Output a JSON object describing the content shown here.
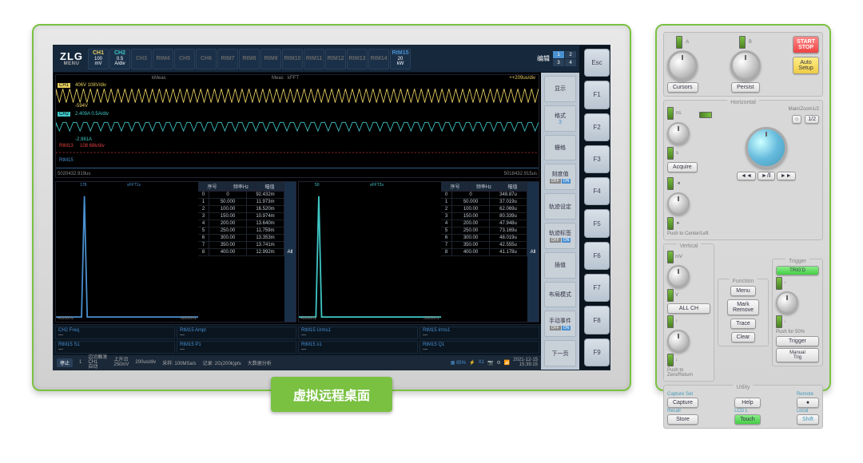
{
  "left": {
    "logo": "ZLG",
    "menu_label": "MENU",
    "channels": [
      {
        "id": "CH1",
        "l2": "100",
        "l3": "mV",
        "on": true,
        "color": "#e8d060"
      },
      {
        "id": "CH2",
        "l2": "0.5",
        "l3": "A/div",
        "on": true,
        "color": "#40c8c8"
      },
      {
        "id": "CH3",
        "on": false
      },
      {
        "id": "RtM4",
        "on": false
      },
      {
        "id": "CH5",
        "on": false
      },
      {
        "id": "CH6",
        "on": false
      },
      {
        "id": "RtM7",
        "on": false
      },
      {
        "id": "RtM8",
        "on": false
      },
      {
        "id": "RtM9",
        "on": false
      },
      {
        "id": "RtM10",
        "on": false
      },
      {
        "id": "RtM11",
        "on": false
      },
      {
        "id": "RtM12",
        "on": false
      },
      {
        "id": "RtM13",
        "on": false
      },
      {
        "id": "RtM14",
        "on": false
      },
      {
        "id": "RtM15",
        "l2": "20",
        "l3": "kW",
        "on": true,
        "color": "#4a90d0"
      }
    ],
    "edit_label": "编辑",
    "edit_cells": [
      "1",
      "2",
      "3",
      "4"
    ],
    "scope": {
      "top_labels": {
        "meas": "kMeas",
        "meas2": "Meas",
        "fft": "kFFT"
      },
      "ch1_tag": "CH1",
      "ch1_info": "406V  108V/div",
      "ch1_color": "#e8d060",
      "ch2_tag": "CH2",
      "ch2_val": "-594V",
      "ch2_info": "2.409A  0.5A/div",
      "ch2_color": "#40c8c8",
      "r13_tag": "RtM13",
      "r13_val": "-2.981A",
      "r13_info": "108  68k/div",
      "r13_color": "#e04040",
      "r15_tag": "RtM15",
      "r15_color": "#4a90d0",
      "bl": "5020432.919us",
      "br": "5018432.915us",
      "tr": "++209us/div"
    },
    "fft": {
      "left": {
        "title": "sFFT1s",
        "peak": "178",
        "x0": "40000Hz",
        "x1": "60000Hz",
        "hdr": [
          "序号",
          "频率Hz",
          "幅值"
        ],
        "rows": [
          [
            "0",
            "0",
            "92.432m"
          ],
          [
            "1",
            "50.000",
            "11.973m"
          ],
          [
            "2",
            "100.00",
            "16.520m"
          ],
          [
            "3",
            "150.00",
            "10.974m"
          ],
          [
            "4",
            "200.00",
            "13.640m"
          ],
          [
            "5",
            "250.00",
            "11.759m"
          ],
          [
            "6",
            "300.00",
            "13.353m"
          ],
          [
            "7",
            "350.00",
            "13.741m"
          ],
          [
            "8",
            "400.00",
            "12.992m"
          ]
        ],
        "all": "All",
        "color": "#4a90d0"
      },
      "right": {
        "title": "sFFT2s",
        "peak": "50",
        "x0": "40000Hz",
        "x1": "50000Hz",
        "hdr": [
          "序号",
          "频率Hz",
          "幅值"
        ],
        "rows": [
          [
            "0",
            "0",
            "348.87u"
          ],
          [
            "1",
            "50.000",
            "37.019u"
          ],
          [
            "2",
            "100.00",
            "62.069u"
          ],
          [
            "3",
            "150.00",
            "80.339u"
          ],
          [
            "4",
            "200.00",
            "47.948u"
          ],
          [
            "5",
            "250.00",
            "73.169u"
          ],
          [
            "6",
            "300.00",
            "48.019u"
          ],
          [
            "7",
            "350.00",
            "42.555u"
          ],
          [
            "8",
            "400.00",
            "41.178u"
          ]
        ],
        "all": "All",
        "color": "#40c8c8"
      }
    },
    "meas": [
      {
        "t": "CH2 Freq",
        "v": "---"
      },
      {
        "t": "RtM15 Ampl",
        "v": "---"
      },
      {
        "t": "RtM15 Urms1",
        "v": "---"
      },
      {
        "t": "RtM15 Irms1",
        "v": "---"
      },
      {
        "t": "RtM15 S1",
        "v": "---"
      },
      {
        "t": "RtM15 P1",
        "v": "---"
      },
      {
        "t": "RtM15 λ1",
        "v": "---"
      },
      {
        "t": "RtM15 Q1",
        "v": "---"
      }
    ],
    "status": {
      "stop": "停止",
      "frame": "1",
      "trig_lbl": "边沿触发\nCH1\n自动",
      "trig_lvl": "上升沿\n250mV",
      "rate_lbl": "采集模式:",
      "rate": "200us/div",
      "sa": "采样:  100MSa/s",
      "pts": "记录:  2G(200k)pts",
      "ana": "大数据分析",
      "date": "2021-12-15",
      "time": "15:39:15"
    },
    "rmenu": [
      {
        "l": "显示"
      },
      {
        "l": "格式",
        "s": "3"
      },
      {
        "l": "栅格"
      },
      {
        "l": "刻度值",
        "tog": true
      },
      {
        "l": "轨迹设定"
      },
      {
        "l": "轨迹标签",
        "tog": true
      },
      {
        "l": "插值"
      },
      {
        "l": "布局模式"
      },
      {
        "l": "手动事件",
        "tog": true
      },
      {
        "l": "下一页"
      }
    ],
    "fkeys": [
      "Esc",
      "F1",
      "F2",
      "F3",
      "F4",
      "F5",
      "F6",
      "F7",
      "F8",
      "F9"
    ],
    "green_button": "虚拟远程桌面"
  },
  "right": {
    "ab": {
      "a": "A",
      "b": "B",
      "start": "START\nSTOP",
      "auto": "Auto\nSetup",
      "cursors": "Cursors",
      "persist": "Persist"
    },
    "horiz": {
      "title": "Horizontal",
      "ns": "ns",
      "s": "s",
      "main": "Main/Zoom1/2",
      "acquire": "Acquire",
      "push": "Push to Center/Left",
      "half": "1/2",
      "btns": [
        "◄◄",
        "►/‖",
        "►►"
      ]
    },
    "triple": {
      "vert": {
        "title": "Vertical",
        "mv": "mV",
        "v": "V",
        "all": "ALL CH",
        "push": "Push to Zero/Return"
      },
      "func": {
        "title": "Function",
        "menu": "Menu",
        "mark": "Mark\nRemove",
        "trace": "Trace",
        "clear": "Clear"
      },
      "trig": {
        "title": "Trigger",
        "trigd": "TRIG'D",
        "push50": "Push for 50%",
        "trigger": "Trigger",
        "manual": "Manual\nTrig"
      }
    },
    "util": {
      "title": "Utility",
      "cap": "Capture Set",
      "capt": "Capture",
      "help": "Help",
      "rem": "Remote",
      "recall": "Recall",
      "store": "Store",
      "lcd": "LCD L",
      "touch": "Touch",
      "local": "Local",
      "shift": "Shift"
    }
  }
}
